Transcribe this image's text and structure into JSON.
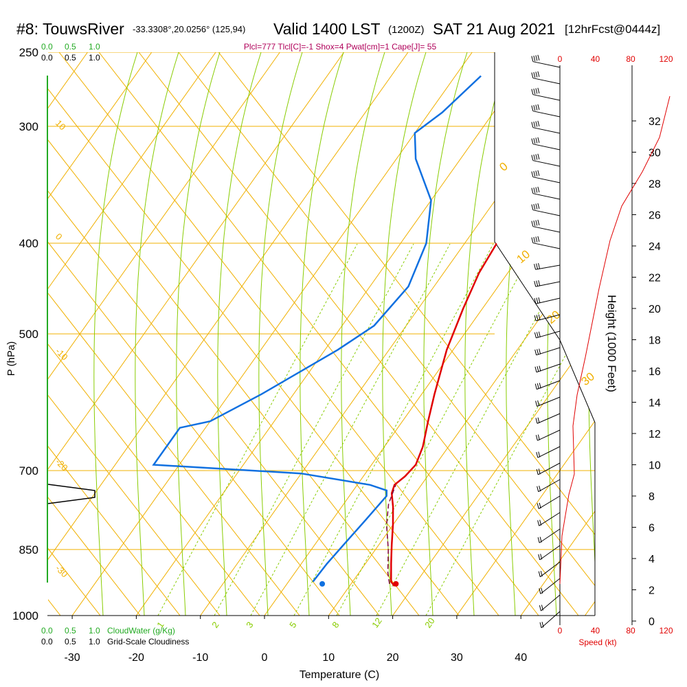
{
  "header": {
    "site": "#8: TouwsRiver",
    "coords": "-33.3308°,20.0256° (125,94)",
    "valid": "Valid 1400 LST",
    "zulu": "(1200Z)",
    "date": "SAT 21 Aug 2021",
    "fcst": "[12hrFcst@0444z]",
    "indices": "Plcl=777 Tlcl[C]=-1 Shox=4 Pwat[cm]=1 Cape[J]= 55"
  },
  "colors": {
    "temperature": "#e00000",
    "dewpoint": "#1070e0",
    "parcel": "#800040",
    "isobar": "#f0b000",
    "dry_adiabat": "#f0b000",
    "moist_adiabat": "#88cc00",
    "mixing_ratio": "#88cc00",
    "cloud": "#22aa22",
    "speed": "#e00000",
    "frame": "#000000"
  },
  "chart_data": {
    "type": "line",
    "title": "#8: TouwsRiver Valid 1400 LST (1200Z) SAT 21 Aug 2021",
    "xlabel": "Temperature (C)",
    "ylabel": "P (hPa)",
    "xlim": [
      -34,
      45
    ],
    "ylim_pressure": [
      1000,
      250
    ],
    "x_ticks": [
      -30,
      -20,
      -10,
      0,
      10,
      20,
      30,
      40
    ],
    "p_ticks": [
      250,
      300,
      400,
      500,
      700,
      850,
      1000
    ],
    "pressure_scale": "log",
    "isotherm_labels": [
      {
        "text": "10",
        "t": -30
      },
      {
        "text": "0",
        "t": -40
      },
      {
        "text": "-10",
        "t": -50
      },
      {
        "text": "-20",
        "t": -62
      },
      {
        "text": "-30",
        "t": -78
      }
    ],
    "theta_labels": [
      {
        "text": "0"
      },
      {
        "text": "10"
      },
      {
        "text": "20"
      },
      {
        "text": "30"
      }
    ],
    "mixing_ratio_labels": [
      "1",
      "2",
      "3",
      "5",
      "8",
      "12",
      "20"
    ],
    "series": [
      {
        "name": "Temperature",
        "points": [
          [
            17,
            930
          ],
          [
            16,
            920
          ],
          [
            14,
            880
          ],
          [
            12,
            840
          ],
          [
            10,
            800
          ],
          [
            8,
            765
          ],
          [
            6.3,
            740
          ],
          [
            5.8,
            725
          ],
          [
            6.5,
            710
          ],
          [
            6.9,
            690
          ],
          [
            6.0,
            660
          ],
          [
            4.0,
            620
          ],
          [
            2.0,
            580
          ],
          [
            -1.0,
            520
          ],
          [
            -3.0,
            470
          ],
          [
            -4.5,
            430
          ],
          [
            -5.0,
            400
          ],
          [
            -4.8,
            370
          ],
          [
            -4.0,
            340
          ],
          [
            -3.0,
            310
          ],
          [
            -2.3,
            280
          ],
          [
            -2.2,
            265
          ]
        ]
      },
      {
        "name": "Dewpoint",
        "points": [
          [
            3.8,
            920
          ],
          [
            4.0,
            880
          ],
          [
            4.5,
            840
          ],
          [
            5.2,
            790
          ],
          [
            5.8,
            745
          ],
          [
            5.2,
            735
          ],
          [
            2.0,
            725
          ],
          [
            -10.0,
            705
          ],
          [
            -34.0,
            690
          ],
          [
            -34.0,
            630
          ],
          [
            -30.0,
            620
          ],
          [
            -25.0,
            580
          ],
          [
            -18.0,
            520
          ],
          [
            -15.0,
            490
          ],
          [
            -14.0,
            445
          ],
          [
            -16.0,
            400
          ],
          [
            -20.0,
            360
          ],
          [
            -27.0,
            325
          ],
          [
            -30.0,
            305
          ],
          [
            -28.0,
            290
          ],
          [
            -26.0,
            265
          ]
        ]
      },
      {
        "name": "Parcel",
        "points": [
          [
            16,
            925
          ],
          [
            14.5,
            900
          ],
          [
            12,
            850
          ],
          [
            9.0,
            800
          ],
          [
            7.0,
            760
          ],
          [
            6.0,
            725
          ]
        ]
      }
    ],
    "surface_points": [
      {
        "name": "Temperature",
        "t": 17,
        "p": 925
      },
      {
        "name": "Dewpoint",
        "t": 5.5,
        "p": 925
      }
    ],
    "cloud_axis": {
      "top_labels_green": [
        "0.0",
        "0.5",
        "1.0"
      ],
      "top_labels_black": [
        "0.0",
        "0.5",
        "1.0"
      ],
      "bottom_labels_green": [
        "0.0",
        "0.5",
        "1.0"
      ],
      "bottom_labels_black": [
        "0.0",
        "0.5",
        "1.0"
      ],
      "cloud_water_label": "CloudWater (g/Kg)",
      "cloudiness_label": "Grid-Scale Cloudiness"
    },
    "wind_panel": {
      "speed_label": "Speed (kt)",
      "speed_ticks": [
        "0",
        "40",
        "80",
        "120"
      ],
      "height_label": "Height (1000 Feet)",
      "height_ticks": [
        0,
        2,
        4,
        6,
        8,
        10,
        12,
        14,
        16,
        18,
        20,
        22,
        24,
        26,
        28,
        30,
        32
      ]
    }
  }
}
